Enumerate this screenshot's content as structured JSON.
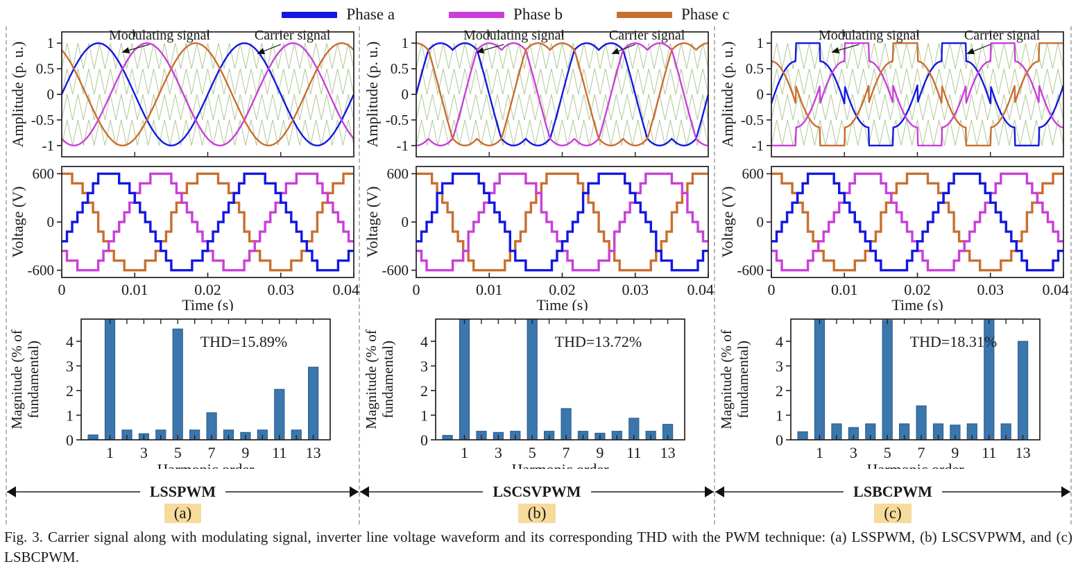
{
  "figure": {
    "legend": [
      {
        "label": "Phase a",
        "color": "#1217e2"
      },
      {
        "label": "Phase b",
        "color": "#c93fd9"
      },
      {
        "label": "Phase c",
        "color": "#c96e2f"
      }
    ],
    "caption": "Fig. 3. Carrier signal along with modulating signal, inverter line voltage waveform and its corresponding THD with the PWM technique: (a) LSSPWM, (b) LSCSVPWM, and (c) LSBCPWM."
  },
  "colors": {
    "carrier": "#a6c289",
    "bar_fill": "#3b76ad",
    "bar_edge": "#295a88",
    "frame": "#231f20",
    "text": "#1a1a1a",
    "highlight": "#f6db9b",
    "separator": "#b5b5b5",
    "arrow": "#111111"
  },
  "columns": [
    {
      "technique": "LSSPWM",
      "sub_label": "(a)"
    },
    {
      "technique": "LSCSVPWM",
      "sub_label": "(b)"
    },
    {
      "technique": "LSBCPWM",
      "sub_label": "(c)"
    }
  ],
  "chart_data": [
    {
      "panel": "mod-a",
      "type": "line",
      "ylabel": "Amplitude (p. u.)",
      "yticks": [
        1,
        0.5,
        0,
        -0.5,
        -1
      ],
      "ytick_labels": [
        "1",
        "0.5",
        "0",
        "-0.5",
        "-1"
      ],
      "ylim": [
        -1.22,
        1.22
      ],
      "xlim_s": [
        0,
        0.04
      ],
      "cycles": 2,
      "modulating": {
        "kind": "sine",
        "m": 1.0,
        "phases_deg": [
          0,
          -120,
          120
        ]
      },
      "carrier": {
        "bands": 4,
        "range": [
          -1,
          1
        ],
        "periods": 27
      },
      "annotations": {
        "modulating": "Modulating signal",
        "carrier": "Carrier signal"
      }
    },
    {
      "panel": "volt-a",
      "type": "step-line",
      "ylabel": "Voltage (V)",
      "xlabel": "Time (s)",
      "yticks": [
        600,
        0,
        -600
      ],
      "ytick_labels": [
        "600",
        "0",
        "-600"
      ],
      "xticks": [
        0,
        0.01,
        0.02,
        0.03,
        0.04
      ],
      "xtick_labels": [
        "0",
        "0.01",
        "0.02",
        "0.03",
        "0.04"
      ],
      "ylim": [
        -690,
        690
      ],
      "xlim_s": [
        0,
        0.04
      ],
      "cycles": 2,
      "amplitude_v": 600,
      "level_step_v": 120,
      "overmod": 1.0,
      "phases_deg": [
        -30,
        -150,
        90
      ]
    },
    {
      "panel": "thd-a",
      "type": "bar",
      "ylabel_lines": [
        "Magnitude (% of",
        "fundamental)"
      ],
      "xlabel": "Harmonic order",
      "categories": [
        0,
        1,
        2,
        3,
        4,
        5,
        6,
        7,
        8,
        9,
        10,
        11,
        12,
        13
      ],
      "values": [
        0.2,
        100,
        0.4,
        0.25,
        0.4,
        4.5,
        0.4,
        1.1,
        0.4,
        0.3,
        0.4,
        2.05,
        0.4,
        2.95
      ],
      "clipped_bars": [
        1
      ],
      "yticks": [
        0,
        1,
        2,
        3,
        4
      ],
      "ylim": [
        0,
        4.9
      ],
      "xtick_positions": [
        1,
        3,
        5,
        7,
        9,
        11,
        13
      ],
      "xtick_labels": [
        "1",
        "3",
        "5",
        "7",
        "9",
        "11",
        "13"
      ],
      "annotation": "THD=15.89%"
    },
    {
      "panel": "mod-b",
      "type": "line",
      "ylabel": "Amplitude (p. u.)",
      "yticks": [
        1,
        0.5,
        0,
        -0.5,
        -1
      ],
      "ytick_labels": [
        "1",
        "0.5",
        "0",
        "-0.5",
        "-1"
      ],
      "ylim": [
        -1.22,
        1.22
      ],
      "xlim_s": [
        0,
        0.04
      ],
      "cycles": 2,
      "modulating": {
        "kind": "svpwm",
        "m": 1.1547,
        "phases_deg": [
          0,
          -120,
          120
        ]
      },
      "carrier": {
        "bands": 4,
        "range": [
          -1,
          1
        ],
        "periods": 27
      },
      "annotations": {
        "modulating": "Modulating signal",
        "carrier": "Carrier signal"
      }
    },
    {
      "panel": "volt-b",
      "type": "step-line",
      "ylabel": "Voltage (V)",
      "xlabel": "Time (s)",
      "yticks": [
        600,
        0,
        -600
      ],
      "ytick_labels": [
        "600",
        "0",
        "-600"
      ],
      "xticks": [
        0,
        0.01,
        0.02,
        0.03,
        0.04
      ],
      "xtick_labels": [
        "0",
        "0.01",
        "0.02",
        "0.03",
        "0.04"
      ],
      "ylim": [
        -690,
        690
      ],
      "xlim_s": [
        0,
        0.04
      ],
      "cycles": 2,
      "amplitude_v": 600,
      "level_step_v": 120,
      "overmod": 1.08,
      "phases_deg": [
        -30,
        -150,
        90
      ]
    },
    {
      "panel": "thd-b",
      "type": "bar",
      "ylabel_lines": [
        "Magnitude (% of",
        "fundamental)"
      ],
      "xlabel": "Harmonic order",
      "categories": [
        0,
        1,
        2,
        3,
        4,
        5,
        6,
        7,
        8,
        9,
        10,
        11,
        12,
        13
      ],
      "values": [
        0.18,
        100,
        0.35,
        0.3,
        0.35,
        5.0,
        0.35,
        1.27,
        0.35,
        0.27,
        0.35,
        0.88,
        0.35,
        0.63
      ],
      "clipped_bars": [
        1,
        5
      ],
      "yticks": [
        0,
        1,
        2,
        3,
        4
      ],
      "ylim": [
        0,
        4.9
      ],
      "xtick_positions": [
        1,
        3,
        5,
        7,
        9,
        11,
        13
      ],
      "xtick_labels": [
        "1",
        "3",
        "5",
        "7",
        "9",
        "11",
        "13"
      ],
      "annotation": "THD=13.72%"
    },
    {
      "panel": "mod-c",
      "type": "line",
      "ylabel": "Amplitude (p. u.)",
      "yticks": [
        1,
        0.5,
        0,
        -0.5,
        -1
      ],
      "ytick_labels": [
        "1",
        "0.5",
        "0",
        "-0.5",
        "-1"
      ],
      "ylim": [
        -1.22,
        1.22
      ],
      "xlim_s": [
        0,
        0.04
      ],
      "cycles": 2,
      "modulating": {
        "kind": "bcpwm",
        "m": 0.95,
        "phases_deg": [
          0,
          -120,
          120
        ]
      },
      "carrier": {
        "bands": 4,
        "range": [
          -1,
          1
        ],
        "periods": 27
      },
      "annotations": {
        "modulating": "Modulating signal",
        "carrier": "Carrier signal"
      }
    },
    {
      "panel": "volt-c",
      "type": "step-line",
      "ylabel": "Voltage (V)",
      "xlabel": "Time (s)",
      "yticks": [
        600,
        0,
        -600
      ],
      "ytick_labels": [
        "600",
        "0",
        "-600"
      ],
      "xticks": [
        0,
        0.01,
        0.02,
        0.03,
        0.04
      ],
      "xtick_labels": [
        "0",
        "0.01",
        "0.02",
        "0.03",
        "0.04"
      ],
      "ylim": [
        -690,
        690
      ],
      "xlim_s": [
        0,
        0.04
      ],
      "cycles": 2,
      "amplitude_v": 600,
      "level_step_v": 120,
      "overmod": 1.02,
      "phases_deg": [
        -30,
        -150,
        90
      ]
    },
    {
      "panel": "thd-c",
      "type": "bar",
      "ylabel_lines": [
        "Magnitude (% of",
        "fundamental)"
      ],
      "xlabel": "Harmonic order",
      "categories": [
        0,
        1,
        2,
        3,
        4,
        5,
        6,
        7,
        8,
        9,
        10,
        11,
        12,
        13
      ],
      "values": [
        0.33,
        100,
        0.65,
        0.5,
        0.65,
        4.85,
        0.65,
        1.38,
        0.65,
        0.6,
        0.65,
        5.0,
        0.65,
        4.0
      ],
      "clipped_bars": [
        1,
        11
      ],
      "yticks": [
        0,
        1,
        2,
        3,
        4
      ],
      "ylim": [
        0,
        4.9
      ],
      "xtick_positions": [
        1,
        3,
        5,
        7,
        9,
        11,
        13
      ],
      "xtick_labels": [
        "1",
        "3",
        "5",
        "7",
        "9",
        "11",
        "13"
      ],
      "annotation": "THD=18.31%"
    }
  ]
}
